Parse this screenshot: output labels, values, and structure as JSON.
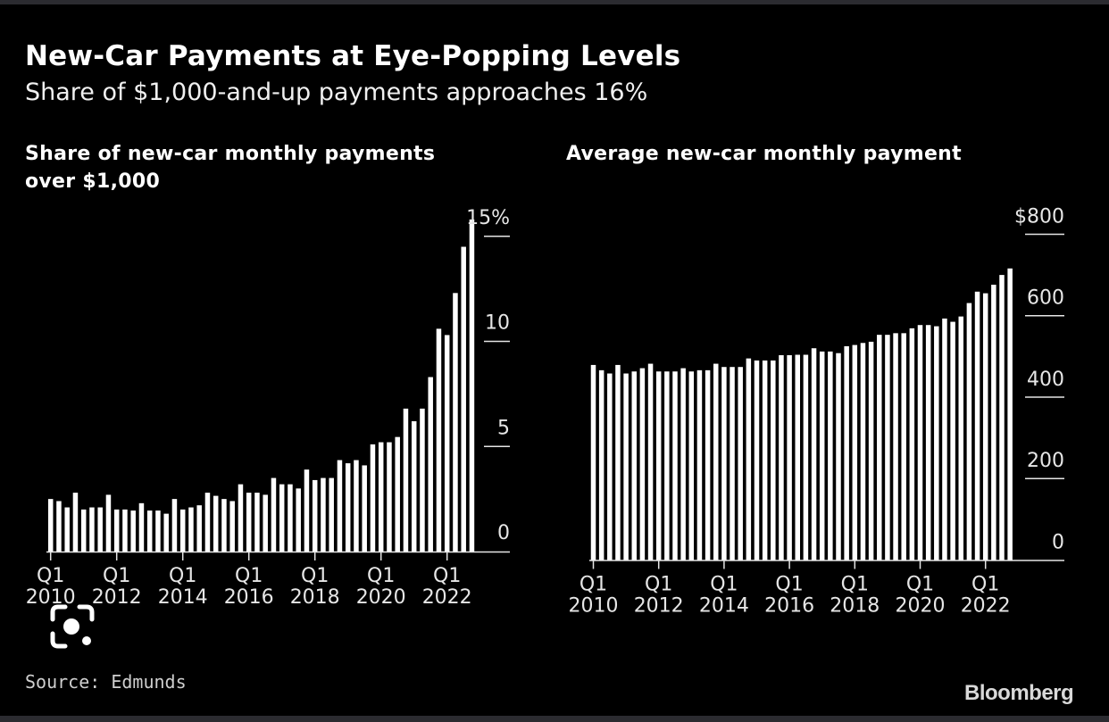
{
  "header": {
    "title": "New-Car Payments at Eye-Popping Levels",
    "subtitle": "Share of $1,000-and-up payments approaches 16%"
  },
  "footer": {
    "source": "Source: Edmunds",
    "logo": "Bloomberg"
  },
  "overlay": {
    "icon": "lens-scan-icon"
  },
  "colors": {
    "background": "#000000",
    "bar": "#ffffff",
    "axis": "#e6e6e6",
    "band": "#2b2b30"
  },
  "chart_data": [
    {
      "type": "bar",
      "title_lines": [
        "Share of new-car monthly payments",
        "over $1,000"
      ],
      "xlabel": "",
      "ylabel": "",
      "ylim": [
        0,
        15.5
      ],
      "y_ticks": [
        0,
        5,
        10,
        15
      ],
      "y_tick_labels": [
        "0",
        "5",
        "10",
        "15%"
      ],
      "x_ticks": [
        {
          "index": 0,
          "q": "Q1",
          "year": "2010"
        },
        {
          "index": 8,
          "q": "Q1",
          "year": "2012"
        },
        {
          "index": 16,
          "q": "Q1",
          "year": "2014"
        },
        {
          "index": 24,
          "q": "Q1",
          "year": "2016"
        },
        {
          "index": 32,
          "q": "Q1",
          "year": "2018"
        },
        {
          "index": 40,
          "q": "Q1",
          "year": "2020"
        },
        {
          "index": 48,
          "q": "Q1",
          "year": "2022"
        }
      ],
      "x_range": "Q1 2010 - Q4 2022 (quarterly)",
      "grid": false,
      "values": [
        2.5,
        2.4,
        2.1,
        2.8,
        2.0,
        2.1,
        2.1,
        2.7,
        2.0,
        2.0,
        1.95,
        2.3,
        1.95,
        1.95,
        1.8,
        2.5,
        2.0,
        2.1,
        2.2,
        2.8,
        2.65,
        2.5,
        2.4,
        3.2,
        2.8,
        2.8,
        2.7,
        3.5,
        3.2,
        3.2,
        3.0,
        3.9,
        3.4,
        3.5,
        3.5,
        4.35,
        4.2,
        4.35,
        4.1,
        5.1,
        5.2,
        5.2,
        5.45,
        6.8,
        6.2,
        6.8,
        8.3,
        10.6,
        10.3,
        12.3,
        14.5,
        15.8
      ]
    },
    {
      "type": "bar",
      "title_lines": [
        "Average new-car monthly payment"
      ],
      "xlabel": "",
      "ylabel": "",
      "ylim": [
        0,
        800
      ],
      "y_ticks": [
        0,
        200,
        400,
        600,
        800
      ],
      "y_tick_labels": [
        "0",
        "200",
        "400",
        "600",
        "$800"
      ],
      "x_ticks": [
        {
          "index": 0,
          "q": "Q1",
          "year": "2010"
        },
        {
          "index": 8,
          "q": "Q1",
          "year": "2012"
        },
        {
          "index": 16,
          "q": "Q1",
          "year": "2014"
        },
        {
          "index": 24,
          "q": "Q1",
          "year": "2016"
        },
        {
          "index": 32,
          "q": "Q1",
          "year": "2018"
        },
        {
          "index": 40,
          "q": "Q1",
          "year": "2020"
        },
        {
          "index": 48,
          "q": "Q1",
          "year": "2022"
        }
      ],
      "x_range": "Q1 2010 - Q4 2022 (quarterly)",
      "grid": false,
      "values": [
        479,
        466,
        458,
        479,
        458,
        463,
        471,
        482,
        463,
        463,
        463,
        471,
        463,
        466,
        466,
        482,
        474,
        474,
        474,
        495,
        490,
        490,
        490,
        503,
        503,
        504,
        504,
        520,
        512,
        512,
        508,
        525,
        528,
        533,
        536,
        553,
        553,
        557,
        557,
        569,
        577,
        577,
        574,
        593,
        585,
        598,
        631,
        659,
        655,
        676,
        700,
        716
      ]
    }
  ]
}
